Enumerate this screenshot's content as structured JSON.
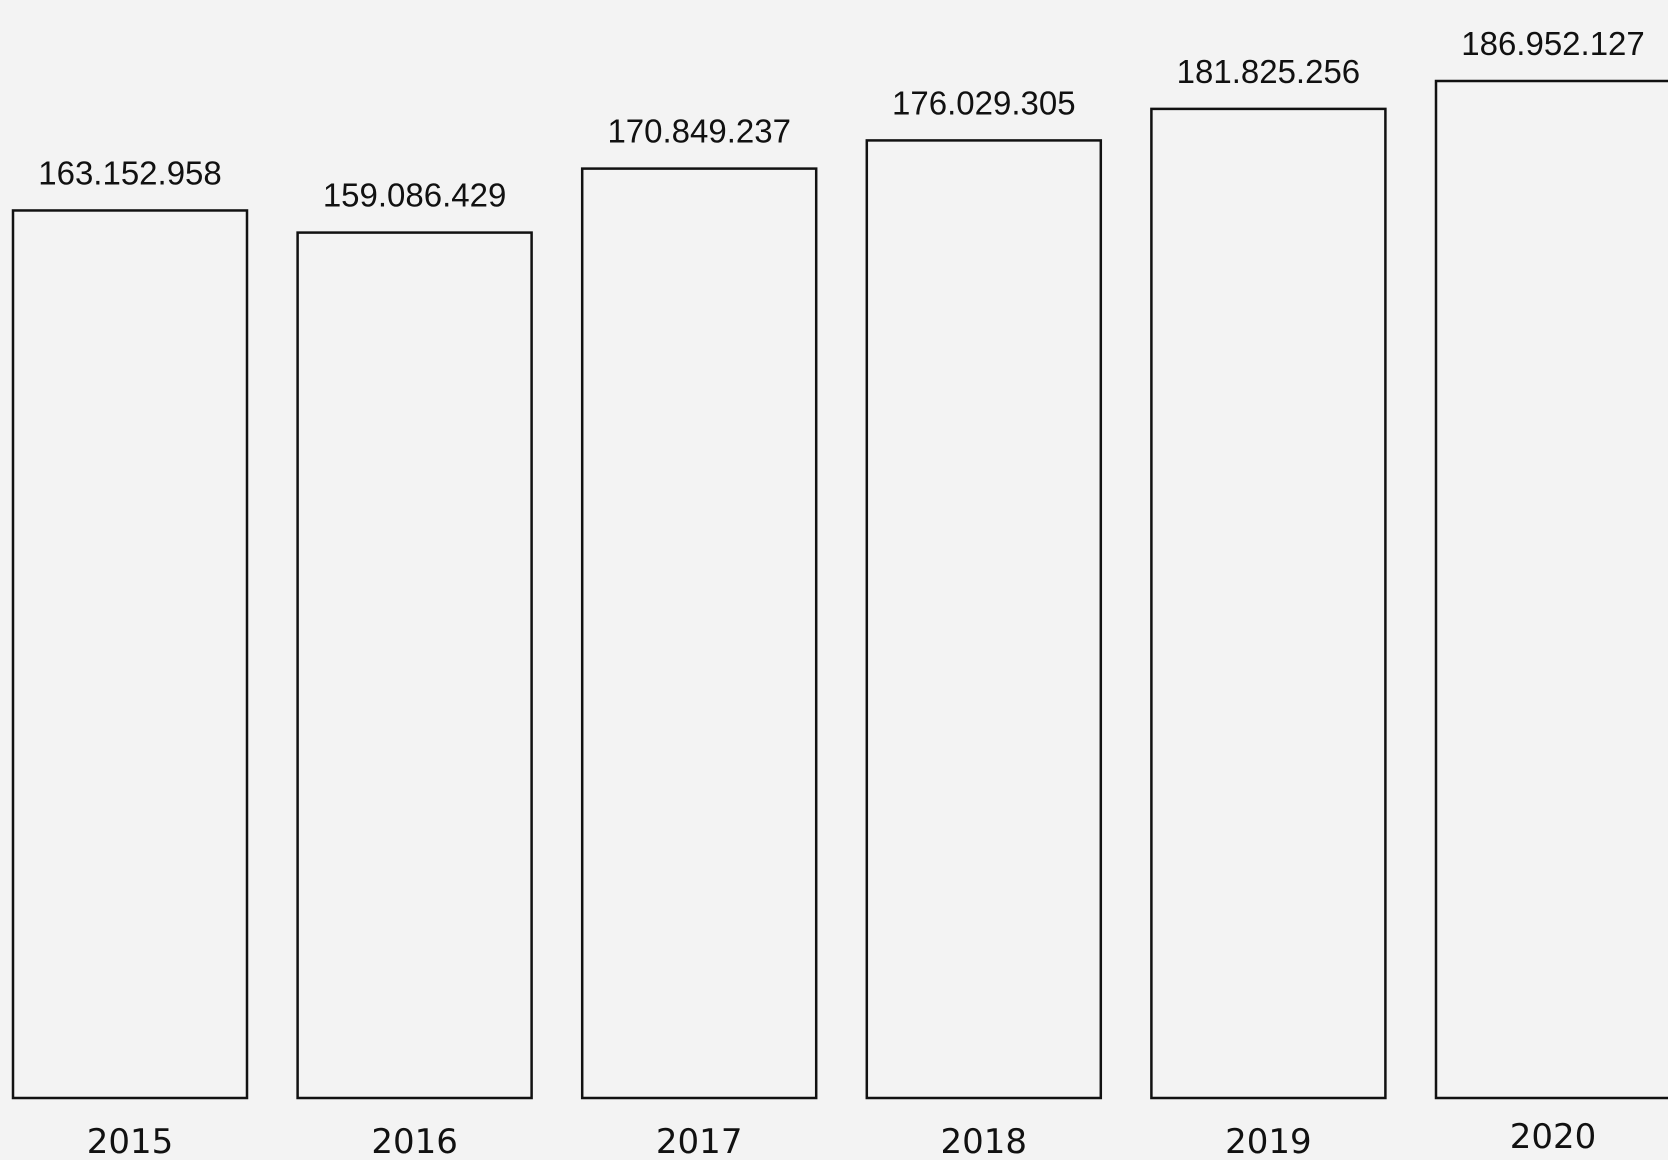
{
  "chart_data": {
    "type": "bar",
    "title": "",
    "xlabel": "",
    "ylabel": "",
    "categories": [
      "2015",
      "2016",
      "2017",
      "2018",
      "2019",
      "2020"
    ],
    "values": [
      163152958,
      159086429,
      170849237,
      176029305,
      181825256,
      186952127
    ],
    "value_labels": [
      "163.152.958",
      "159.086.429",
      "170.849.237",
      "176.029.305",
      "181.825.256",
      "186.952.127"
    ],
    "ylim": [
      140000000,
      190000000
    ],
    "grid": false,
    "legend": "none",
    "colors": {
      "background": "#f3f3f3",
      "bar_fill": "#f3f3f3",
      "bar_stroke": "#111111",
      "text": "#111111"
    }
  }
}
